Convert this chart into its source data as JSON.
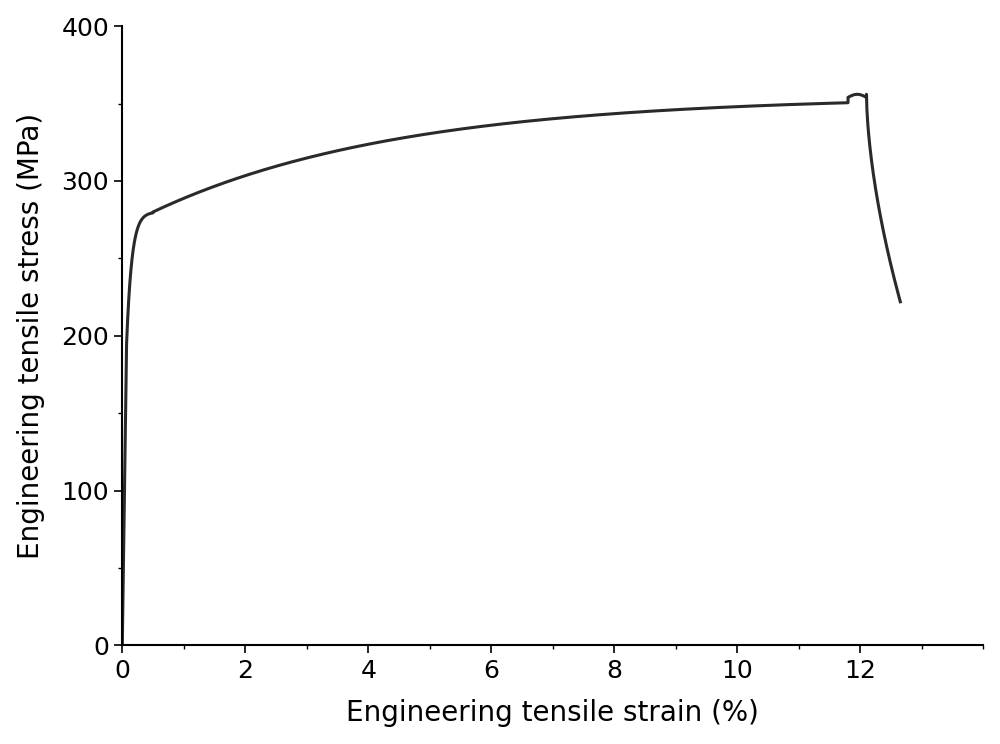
{
  "xlabel": "Engineering tensile strain (%)",
  "ylabel": "Engineering tensile stress (MPa)",
  "xlim": [
    0,
    14
  ],
  "ylim": [
    0,
    400
  ],
  "xticks": [
    0,
    2,
    4,
    6,
    8,
    10,
    12
  ],
  "yticks": [
    0,
    100,
    200,
    300,
    400
  ],
  "line_color": "#2a2a2a",
  "line_width": 2.2,
  "background_color": "#ffffff",
  "xlabel_fontsize": 20,
  "ylabel_fontsize": 20,
  "tick_fontsize": 18
}
